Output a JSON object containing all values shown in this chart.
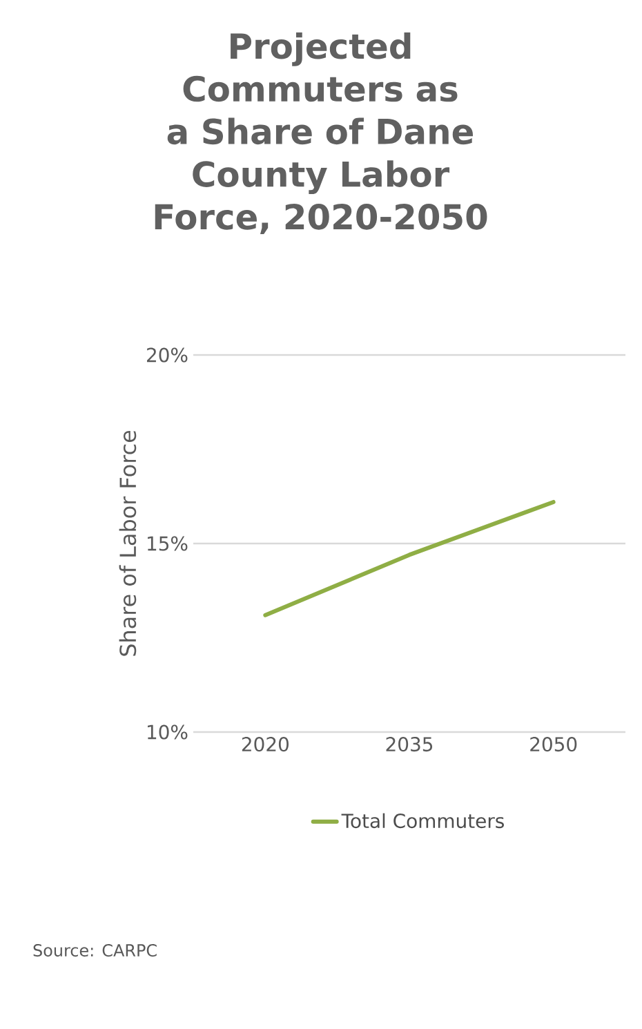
{
  "chart_data": {
    "type": "line",
    "title": "Projected Commuters as a Share of Dane County Labor Force, 2020-2050",
    "ylabel": "Share of Labor Force",
    "categories": [
      "2020",
      "2035",
      "2050"
    ],
    "series": [
      {
        "name": "Total Commuters",
        "color": "#8fae45",
        "values": [
          13.1,
          14.7,
          16.1
        ]
      }
    ],
    "ylim": [
      10,
      20
    ],
    "yticks": [
      {
        "value": 10,
        "label": "10%"
      },
      {
        "value": 15,
        "label": "15%"
      },
      {
        "value": 20,
        "label": "20%"
      }
    ],
    "grid": "y",
    "legend": "bottom",
    "marker": "none",
    "line_style": "solid",
    "annotations": [
      "Source: CARPC"
    ]
  }
}
